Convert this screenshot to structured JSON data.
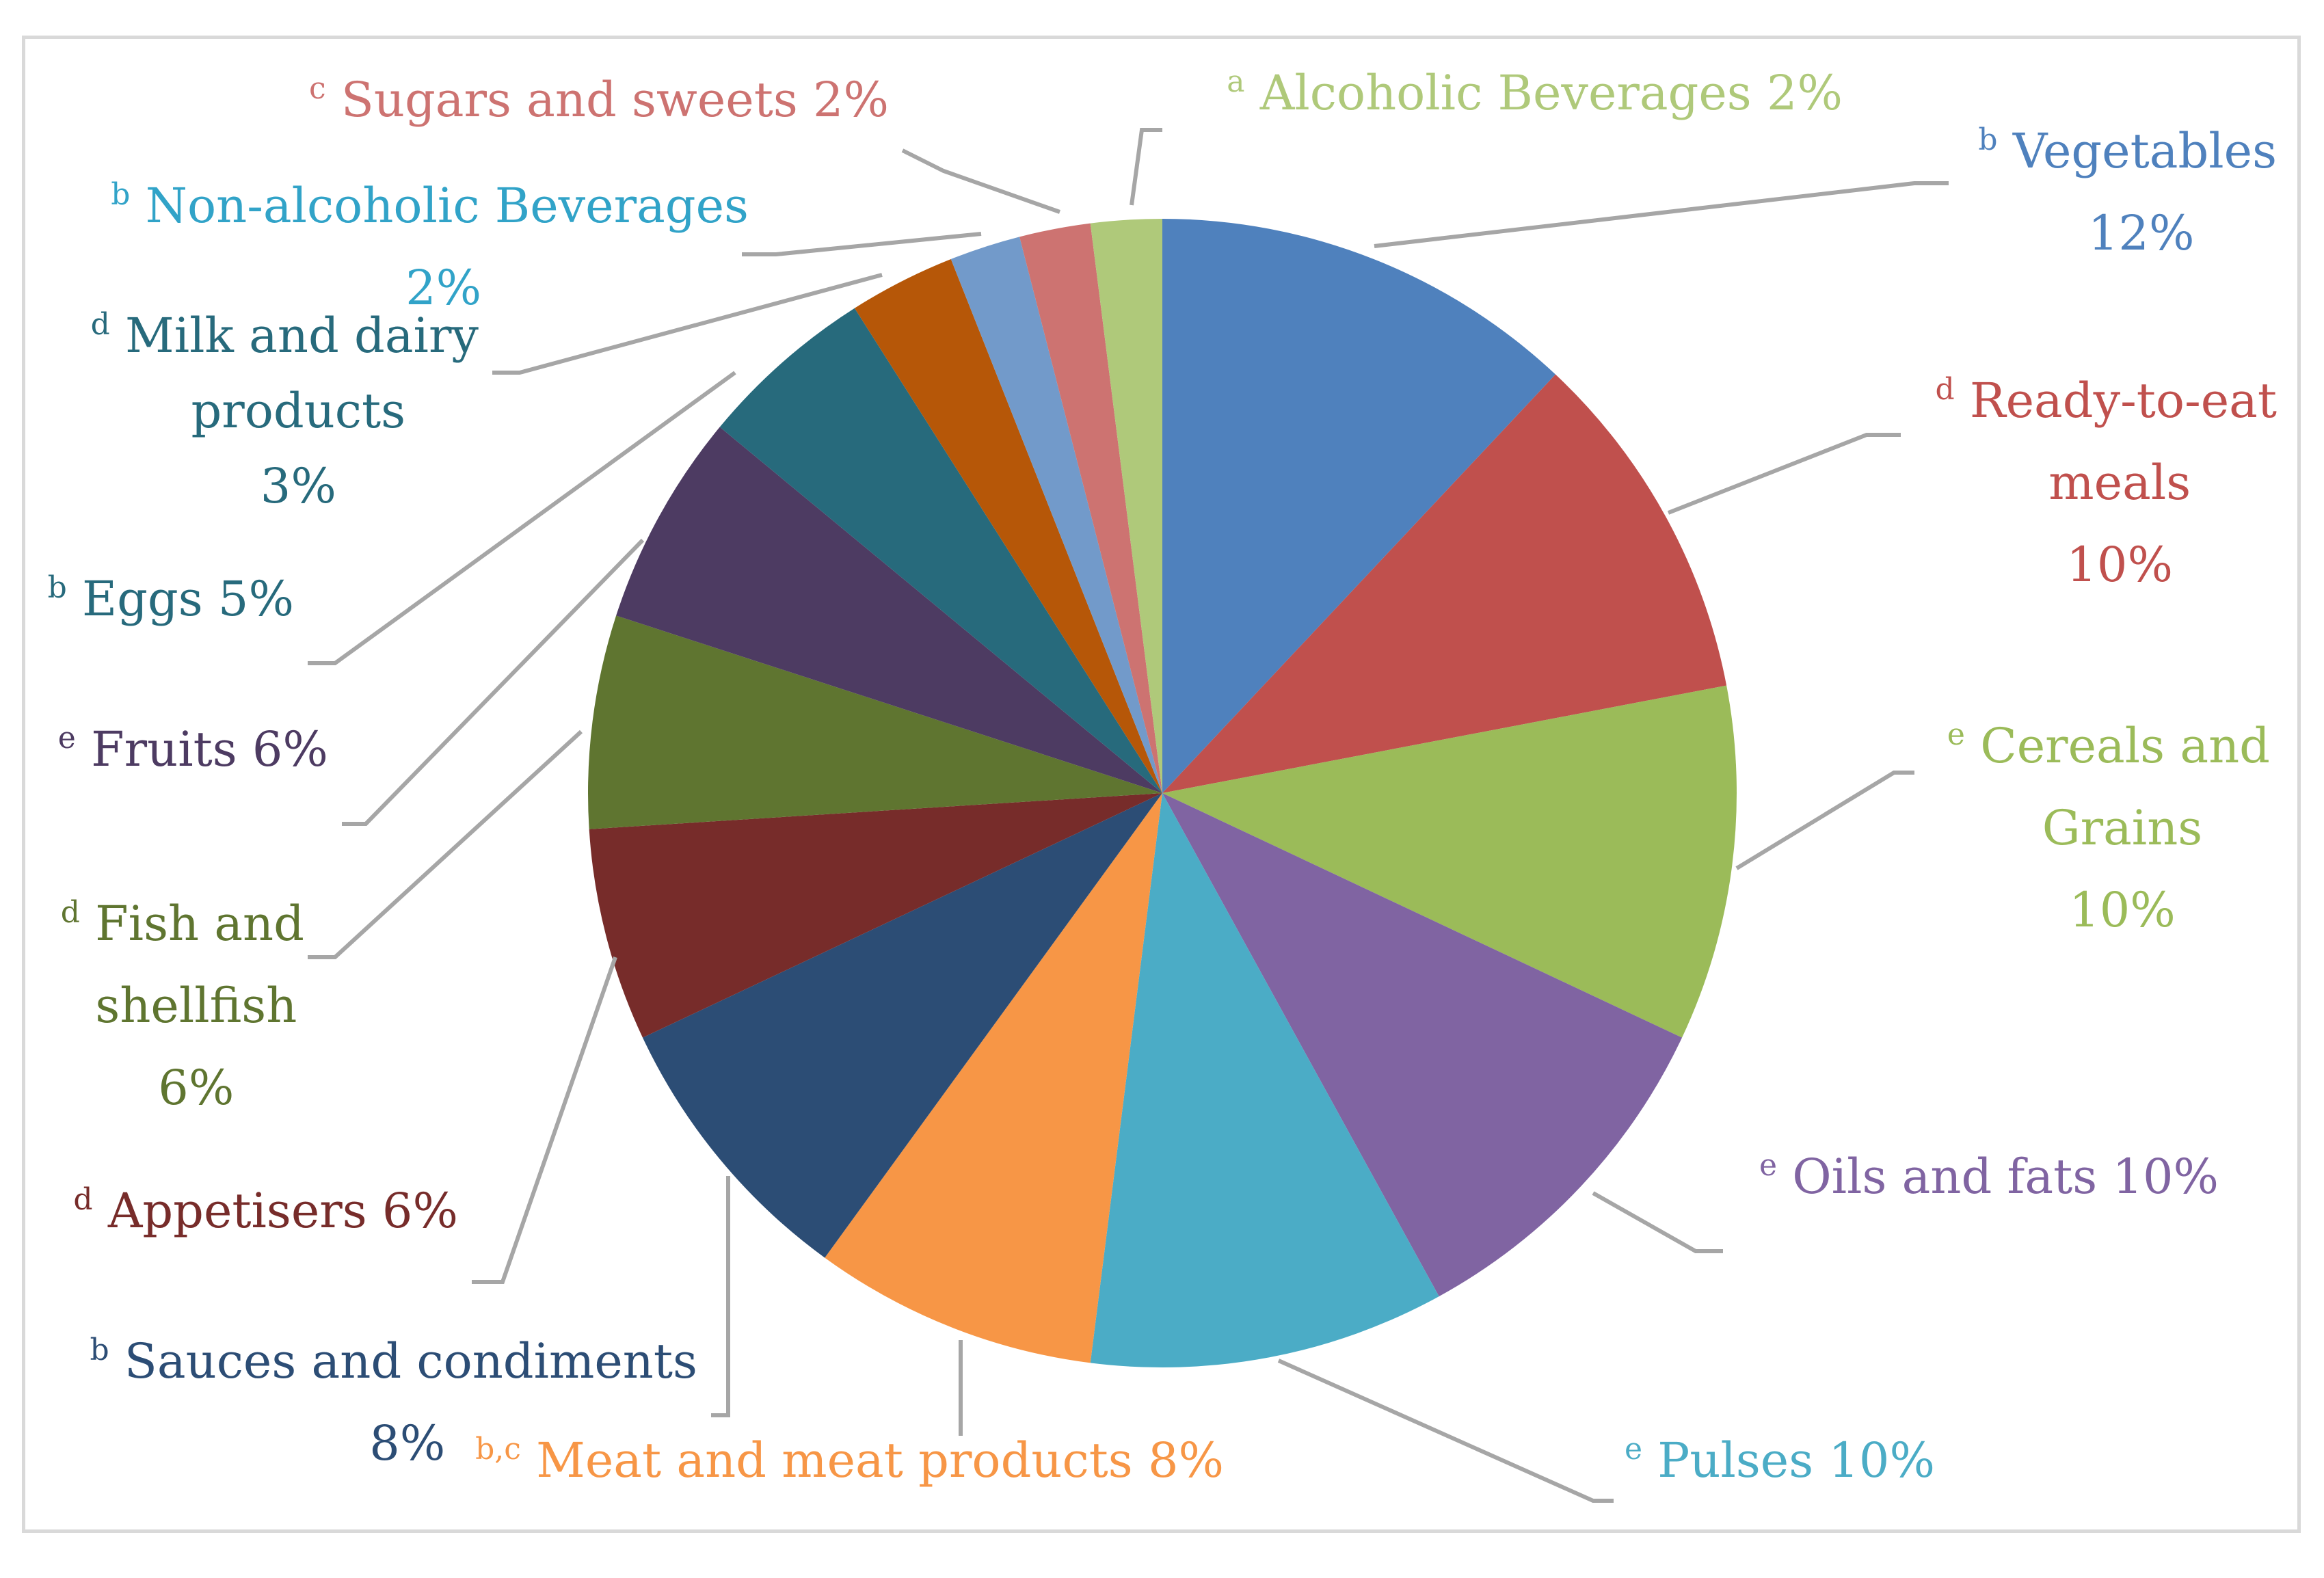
{
  "chart_data": {
    "type": "pie",
    "title": "",
    "start": "12 o'clock, clockwise",
    "slices": [
      {
        "name": "Vegetables",
        "sup": "b",
        "value": 12,
        "pct": "12%",
        "color": "#4f81bd",
        "text_color": "#4f81bd",
        "lines": [
          "Vegetables",
          "12%"
        ]
      },
      {
        "name": "Ready-to-eat meals",
        "sup": "d",
        "value": 10,
        "pct": "10%",
        "color": "#c0504d",
        "text_color": "#c0504d",
        "lines": [
          "Ready-to-eat",
          "meals",
          "10%"
        ]
      },
      {
        "name": "Cereals and Grains",
        "sup": "e",
        "value": 10,
        "pct": "10%",
        "color": "#9bbb59",
        "text_color": "#9bbb59",
        "lines": [
          "Cereals and",
          "Grains",
          "10%"
        ]
      },
      {
        "name": "Oils and fats",
        "sup": "e",
        "value": 10,
        "pct": "10%",
        "color": "#8064a2",
        "text_color": "#8064a2",
        "lines": [
          "Oils and fats 10%"
        ]
      },
      {
        "name": "Pulses",
        "sup": "e",
        "value": 10,
        "pct": "10%",
        "color": "#4bacc6",
        "text_color": "#4bacc6",
        "lines": [
          "Pulses 10%"
        ]
      },
      {
        "name": "Meat and meat products",
        "sup": "b,c",
        "value": 8,
        "pct": "8%",
        "color": "#f79646",
        "text_color": "#f79646",
        "lines": [
          "Meat and meat products 8%"
        ]
      },
      {
        "name": "Sauces and condiments",
        "sup": "b",
        "value": 8,
        "pct": "8%",
        "color": "#2c4d75",
        "text_color": "#2c4d75",
        "lines": [
          "Sauces and condiments",
          "8%"
        ]
      },
      {
        "name": "Appetisers",
        "sup": "d",
        "value": 6,
        "pct": "6%",
        "color": "#772c2a",
        "text_color": "#772c2a",
        "lines": [
          "Appetisers 6%"
        ]
      },
      {
        "name": "Fish and shellfish",
        "sup": "d",
        "value": 6,
        "pct": "6%",
        "color": "#5f7530",
        "text_color": "#5f7530",
        "lines": [
          "Fish and",
          "shellfish",
          "6%"
        ]
      },
      {
        "name": "Fruits",
        "sup": "e",
        "value": 6,
        "pct": "6%",
        "color": "#4d3b62",
        "text_color": "#4d3b62",
        "lines": [
          "Fruits 6%"
        ]
      },
      {
        "name": "Eggs",
        "sup": "b",
        "value": 5,
        "pct": "5%",
        "color": "#276a7c",
        "text_color": "#276a7c",
        "lines": [
          "Eggs 5%"
        ]
      },
      {
        "name": "Milk and dairy products",
        "sup": "d",
        "value": 3,
        "pct": "3%",
        "color": "#b65708",
        "text_color": "#276a7c",
        "lines": [
          "Milk and dairy",
          "products",
          "3%"
        ]
      },
      {
        "name": "Non-alcoholic Beverages",
        "sup": "b",
        "value": 2,
        "pct": "2%",
        "color": "#729aca",
        "text_color": "#31a3c8",
        "lines": [
          "Non-alcoholic Beverages",
          "2%"
        ]
      },
      {
        "name": "Sugars and sweets",
        "sup": "c",
        "value": 2,
        "pct": "2%",
        "color": "#cd7371",
        "text_color": "#cd7371",
        "lines": [
          "Sugars and sweets 2%"
        ]
      },
      {
        "name": "Alcoholic Beverages",
        "sup": "a",
        "value": 2,
        "pct": "2%",
        "color": "#afc97a",
        "text_color": "#afc97a",
        "lines": [
          "Alcoholic Beverages  2%"
        ]
      }
    ],
    "leader_color": "#a6a6a6"
  }
}
